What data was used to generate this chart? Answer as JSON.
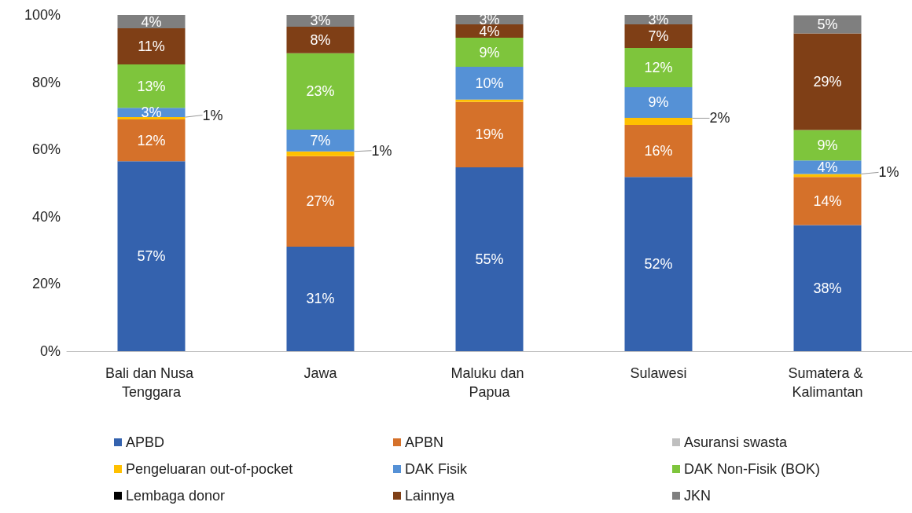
{
  "chart_data": {
    "type": "bar",
    "stacked": true,
    "categories": [
      "Bali dan Nusa Tenggara",
      "Jawa",
      "Maluku dan Papua",
      "Sulawesi",
      "Sumatera & Kalimantan"
    ],
    "series": [
      {
        "name": "APBD",
        "color": "#3462ae",
        "values": [
          56.5,
          31.1,
          54.7,
          51.8,
          37.5
        ],
        "value_labels": [
          "57%",
          "31%",
          "55%",
          "52%",
          "38%"
        ]
      },
      {
        "name": "APBN",
        "color": "#d5712a",
        "values": [
          12.4,
          26.9,
          19.4,
          15.5,
          14.3
        ],
        "value_labels": [
          "12%",
          "27%",
          "19%",
          "16%",
          "14%"
        ]
      },
      {
        "name": "Asuransi swasta",
        "color": "#bfbfbf",
        "values": [
          null,
          null,
          null,
          null,
          null
        ]
      },
      {
        "name": "Pengeluaran out-of-pocket",
        "color": "#ffc000",
        "values": [
          0.7,
          1.4,
          0.7,
          2.1,
          0.9
        ],
        "value_labels": [
          "1%",
          "1%",
          null,
          "2%",
          "1%"
        ]
      },
      {
        "name": "DAK Fisik",
        "color": "#5591d6",
        "values": [
          2.8,
          6.5,
          9.8,
          9.1,
          4.0
        ],
        "value_labels": [
          "3%",
          "7%",
          "10%",
          "9%",
          "4%"
        ]
      },
      {
        "name": "DAK Non-Fisik (BOK)",
        "color": "#7ec53c",
        "values": [
          12.9,
          22.7,
          8.6,
          11.7,
          9.1
        ],
        "value_labels": [
          "13%",
          "23%",
          "9%",
          "12%",
          "9%"
        ]
      },
      {
        "name": "Lembaga donor",
        "color": "#000000",
        "values": [
          null,
          null,
          null,
          null,
          null
        ]
      },
      {
        "name": "Lainnya",
        "color": "#7f3f16",
        "values": [
          10.7,
          7.9,
          4.0,
          7.0,
          28.7
        ],
        "value_labels": [
          "11%",
          "8%",
          "4%",
          "7%",
          "29%"
        ]
      },
      {
        "name": "JKN",
        "color": "#7f7f7f",
        "values": [
          4.0,
          3.5,
          2.8,
          2.8,
          5.4
        ],
        "value_labels": [
          "4%",
          "3%",
          "3%",
          "3%",
          "5%"
        ]
      }
    ],
    "ylim": [
      0,
      100
    ],
    "yticks": [
      {
        "value": 0,
        "label": "0%"
      },
      {
        "value": 20,
        "label": "20%"
      },
      {
        "value": 40,
        "label": "40%"
      },
      {
        "value": 60,
        "label": "60%"
      },
      {
        "value": 80,
        "label": "80%"
      },
      {
        "value": 100,
        "label": "100%"
      }
    ],
    "grid": false,
    "legend": "bottom"
  }
}
